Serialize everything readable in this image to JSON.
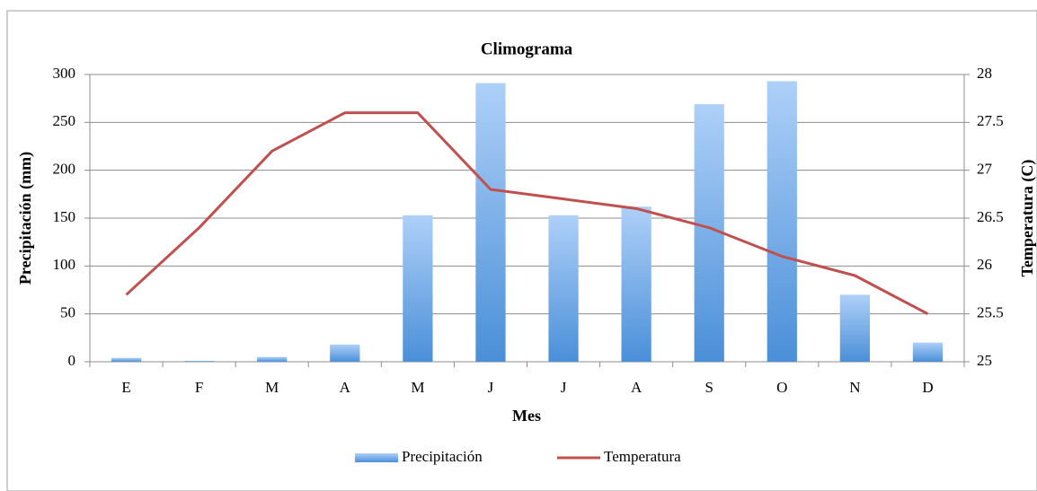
{
  "chart_data": {
    "type": "bar_line",
    "title": "Climograma",
    "x_label": "Mes",
    "y_label": "Precipitación (mm)",
    "y2_label": "Temperatura (C)",
    "categories": [
      "E",
      "F",
      "M",
      "A",
      "M",
      "J",
      "J",
      "A",
      "S",
      "O",
      "N",
      "D"
    ],
    "series": [
      {
        "name": "Precipitación",
        "type": "bar",
        "color": "#4a8fd8",
        "values": [
          4,
          1,
          5,
          18,
          153,
          291,
          153,
          162,
          269,
          293,
          70,
          20
        ]
      },
      {
        "name": "Temperatura",
        "type": "line",
        "axis": "y2",
        "color": "#c0504d",
        "values": [
          25.7,
          26.4,
          27.2,
          27.6,
          27.6,
          26.8,
          26.7,
          26.6,
          26.4,
          26.1,
          25.9,
          25.5
        ]
      }
    ],
    "ylim": [
      0,
      300
    ],
    "yticks": [
      0,
      50,
      100,
      150,
      200,
      250,
      300
    ],
    "y2lim": [
      25,
      28
    ],
    "y2ticks": [
      25,
      25.5,
      26,
      26.5,
      27,
      27.5,
      28
    ],
    "grid": true,
    "legend": "bottom"
  }
}
